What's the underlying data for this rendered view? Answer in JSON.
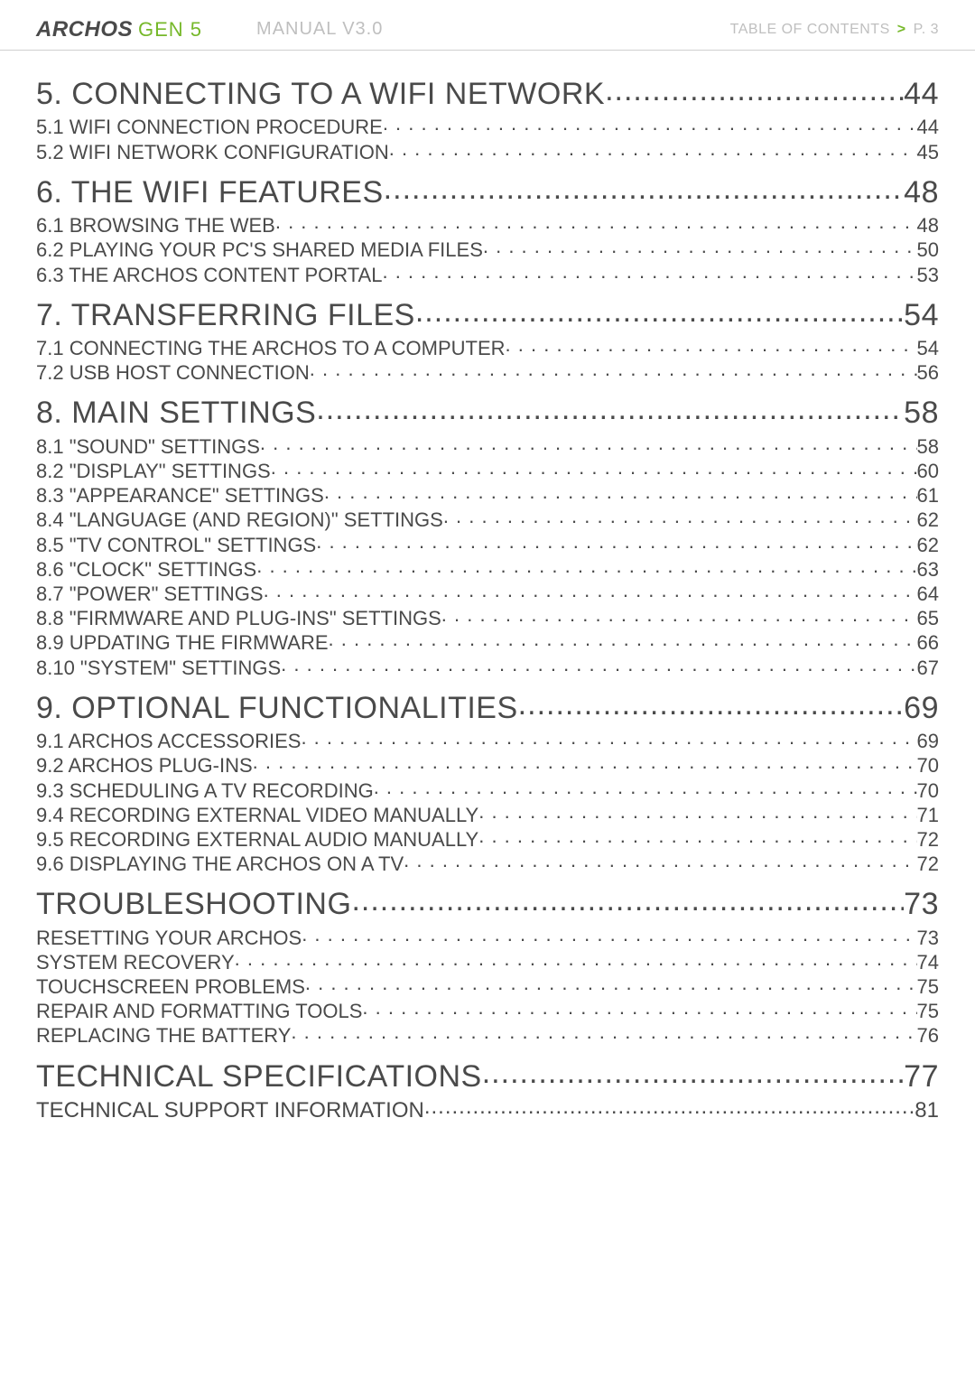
{
  "header": {
    "brand_archos": "ARCHOS",
    "brand_gen": "GEN 5",
    "manual_version": "MANUAL V3.0",
    "right_label": "TABLE OF CONTENTS",
    "chevron": ">",
    "page_label": "P. 3"
  },
  "colors": {
    "text": "#4a4a4a",
    "muted": "#bfbfbf",
    "accent": "#76b82a",
    "border": "#d0d0d0",
    "background": "#ffffff"
  },
  "toc": [
    {
      "level": 1,
      "title": "5. CONNECTING TO A WIFI NETWORK",
      "page": "44",
      "leader": "tight"
    },
    {
      "level": 2,
      "title": "5.1 WIFI CONNECTION PROCEDURE",
      "page": "44",
      "leader": "dotted"
    },
    {
      "level": 2,
      "title": "5.2 WIFI NETWORK CONFIGURATION",
      "page": "45",
      "leader": "dotted"
    },
    {
      "level": 1,
      "title": "6. THE WIFI FEATURES",
      "page": "48",
      "leader": "tight"
    },
    {
      "level": 2,
      "title": "6.1 BROWSING THE WEB",
      "page": "48",
      "leader": "dotted"
    },
    {
      "level": 2,
      "title": "6.2 PLAYING YOUR PC'S SHARED MEDIA FILES",
      "page": "50",
      "leader": "dotted"
    },
    {
      "level": 2,
      "title": "6.3 THE ARCHOS CONTENT PORTAL",
      "page": "53",
      "leader": "dotted"
    },
    {
      "level": 1,
      "title": "7. TRANSFERRING FILES",
      "page": "54",
      "leader": "tight"
    },
    {
      "level": 2,
      "title": "7.1 CONNECTING THE ARCHOS TO A COMPUTER",
      "page": "54",
      "leader": "dotted"
    },
    {
      "level": 2,
      "title": "7.2 USB HOST CONNECTION",
      "page": "56",
      "leader": "dotted"
    },
    {
      "level": 1,
      "title": "8. MAIN SETTINGS",
      "page": "58",
      "leader": "tight"
    },
    {
      "level": 2,
      "title": "8.1 \"SOUND\" SETTINGS",
      "page": "58",
      "leader": "dotted"
    },
    {
      "level": 2,
      "title": "8.2 \"DISPLAY\" SETTINGS",
      "page": "60",
      "leader": "dotted"
    },
    {
      "level": 2,
      "title": "8.3 \"APPEARANCE\" SETTINGS",
      "page": "61",
      "leader": "dotted"
    },
    {
      "level": 2,
      "title": "8.4 \"LANGUAGE (AND REGION)\" SETTINGS",
      "page": "62",
      "leader": "dotted"
    },
    {
      "level": 2,
      "title": "8.5 \"TV CONTROL\" SETTINGS",
      "page": "62",
      "leader": "dotted"
    },
    {
      "level": 2,
      "title": "8.6 \"CLOCK\" SETTINGS",
      "page": "63",
      "leader": "dotted"
    },
    {
      "level": 2,
      "title": "8.7 \"POWER\" SETTINGS",
      "page": "64",
      "leader": "dotted"
    },
    {
      "level": 2,
      "title": "8.8 \"FIRMWARE AND PLUG-INS\" SETTINGS",
      "page": "65",
      "leader": "dotted"
    },
    {
      "level": 2,
      "title": "8.9 UPDATING THE FIRMWARE",
      "page": "66",
      "leader": "dotted"
    },
    {
      "level": 2,
      "title": "8.10 \"SYSTEM\" SETTINGS",
      "page": "67",
      "leader": "dotted"
    },
    {
      "level": 1,
      "title": "9. OPTIONAL FUNCTIONALITIES",
      "page": "69",
      "leader": "tight"
    },
    {
      "level": 2,
      "title": "9.1 ARCHOS ACCESSORIES",
      "page": "69",
      "leader": "dotted"
    },
    {
      "level": 2,
      "title": "9.2 ARCHOS PLUG-INS",
      "page": "70",
      "leader": "dotted"
    },
    {
      "level": 2,
      "title": "9.3 SCHEDULING A TV RECORDING",
      "page": "70",
      "leader": "dotted"
    },
    {
      "level": 2,
      "title": "9.4 RECORDING EXTERNAL VIDEO MANUALLY",
      "page": "71",
      "leader": "dotted"
    },
    {
      "level": 2,
      "title": "9.5 RECORDING EXTERNAL AUDIO MANUALLY",
      "page": "72",
      "leader": "dotted"
    },
    {
      "level": 2,
      "title": "9.6 DISPLAYING THE ARCHOS ON A TV",
      "page": "72",
      "leader": "dotted"
    },
    {
      "level": 1,
      "title": "TROUBLESHOOTING",
      "page": "73",
      "leader": "tight"
    },
    {
      "level": 2,
      "title": "RESETTING YOUR ARCHOS",
      "page": "73",
      "leader": "dotted"
    },
    {
      "level": 2,
      "title": "SYSTEM RECOVERY",
      "page": "74",
      "leader": "dotted"
    },
    {
      "level": 2,
      "title": "TOUCHSCREEN PROBLEMS",
      "page": "75",
      "leader": "dotted"
    },
    {
      "level": 2,
      "title": "REPAIR AND FORMATTING TOOLS",
      "page": "75",
      "leader": "dotted"
    },
    {
      "level": 2,
      "title": "REPLACING THE BATTERY",
      "page": "76",
      "leader": "dotted"
    },
    {
      "level": 1,
      "title": "TECHNICAL SPECIFICATIONS",
      "page": "77",
      "leader": "tight"
    },
    {
      "level": 3,
      "title": "TECHNICAL SUPPORT INFORMATION",
      "page": "81",
      "leader": "tight"
    }
  ]
}
